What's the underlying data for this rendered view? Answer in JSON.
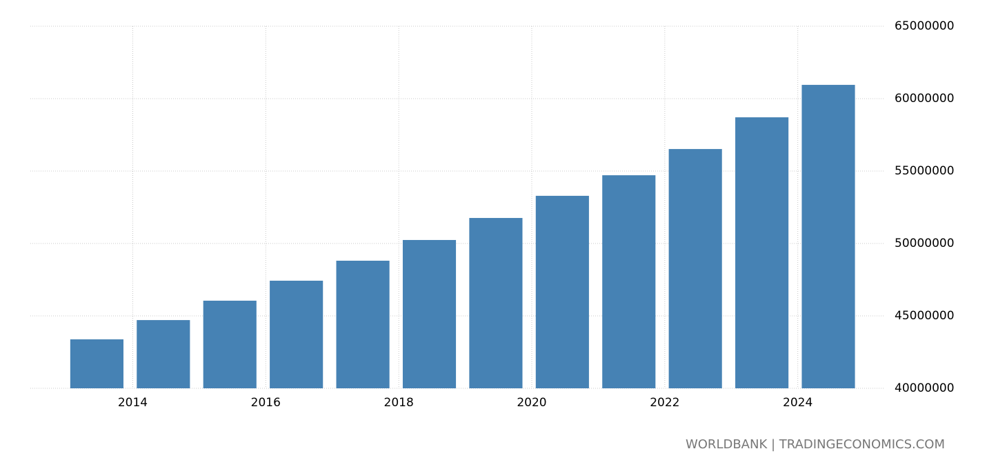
{
  "chart_data": {
    "type": "bar",
    "x": [
      2013,
      2014,
      2015,
      2016,
      2017,
      2018,
      2019,
      2020,
      2021,
      2022,
      2023,
      2024
    ],
    "values": [
      43380000,
      44710000,
      46050000,
      47430000,
      48810000,
      50240000,
      51760000,
      53290000,
      54710000,
      56520000,
      58710000,
      60950000
    ],
    "color": "#4682b4",
    "xlim": [
      2012.46,
      2025.3
    ],
    "xticks": [
      2014,
      2016,
      2018,
      2020,
      2022,
      2024
    ],
    "ylim": [
      40000000,
      65000000
    ],
    "yticks": [
      40000000,
      45000000,
      50000000,
      55000000,
      60000000,
      65000000
    ],
    "grid": true,
    "source": "WORLDBANK | TRADINGECONOMICS.COM"
  }
}
